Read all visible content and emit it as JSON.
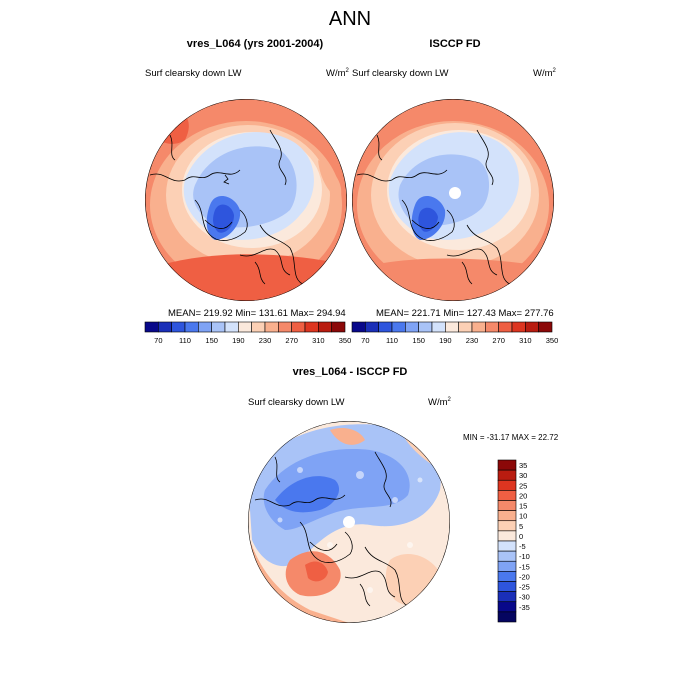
{
  "title": "ANN",
  "panels": [
    {
      "title": "vres_L064 (yrs 2001-2004)",
      "variable": "Surf clearsky down LW",
      "units": "W/m",
      "units_sup": "2",
      "stats": "MEAN= 219.92  Min= 131.61  Max= 294.94"
    },
    {
      "title": "ISCCP FD",
      "variable": "Surf clearsky down LW",
      "units": "W/m",
      "units_sup": "2",
      "stats": "MEAN= 221.71  Min= 127.43  Max= 277.76"
    }
  ],
  "diff_panel": {
    "title": "vres_L064 - ISCCP FD",
    "variable": "Surf clearsky down LW",
    "units": "W/m",
    "units_sup": "2",
    "minmax": "MIN = -31.17 MAX =  22.72"
  },
  "colorbar_top": {
    "labels": [
      "70",
      "110",
      "150",
      "190",
      "230",
      "270",
      "310",
      "350"
    ],
    "colors": [
      "#08088a",
      "#1a2fb8",
      "#2e55dd",
      "#4a78ee",
      "#7fa3f5",
      "#a9c3f7",
      "#d3e2fb",
      "#fbe9dc",
      "#fcd0b5",
      "#f9b08e",
      "#f5896a",
      "#ef5f43",
      "#dd3520",
      "#b91c10",
      "#8b0808"
    ]
  },
  "colorbar_diff": {
    "labels": [
      "35",
      "30",
      "25",
      "20",
      "15",
      "10",
      "5",
      "0",
      "-5",
      "-10",
      "-15",
      "-20",
      "-25",
      "-30",
      "-35"
    ],
    "colors": [
      "#8b0808",
      "#b91c10",
      "#dd3520",
      "#ef5f43",
      "#f5896a",
      "#f9b08e",
      "#fcd0b5",
      "#fbe9dc",
      "#d3e2fb",
      "#a9c3f7",
      "#7fa3f5",
      "#4a78ee",
      "#2e55dd",
      "#1a2fb8",
      "#08088a",
      "#050560"
    ]
  }
}
